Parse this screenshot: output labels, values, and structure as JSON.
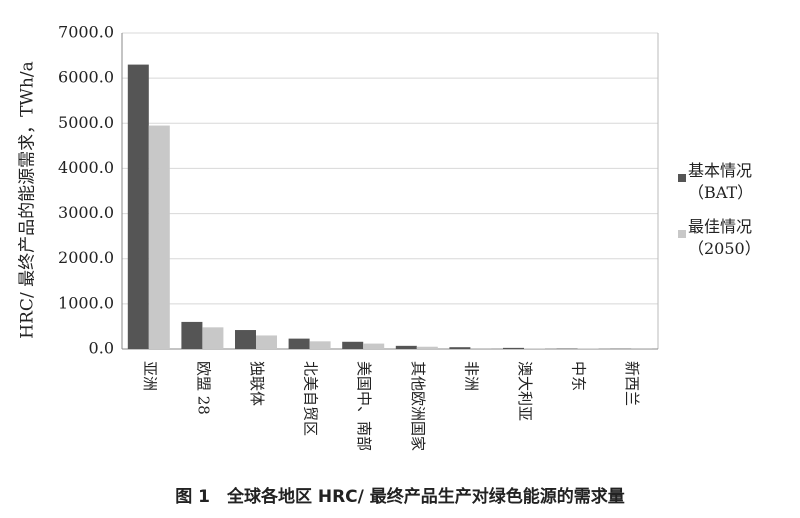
{
  "chart_data": {
    "type": "bar",
    "ylabel": "HRC/ 最终产品的能源需求，TWh/a",
    "caption": "图 1　全球各地区 HRC/ 最终产品生产对绿色能源的需求量",
    "categories": [
      "亚洲",
      "欧盟 28",
      "独联体",
      "北美自贸区",
      "美国中、南部",
      "其他欧洲国家",
      "非洲",
      "澳大利亚",
      "中东",
      "新西兰"
    ],
    "series": [
      {
        "name": "基本情况（BAT）",
        "color": "#555555",
        "values": [
          6300,
          600,
          420,
          230,
          160,
          70,
          40,
          25,
          10,
          5
        ]
      },
      {
        "name": "最佳情况（2050）",
        "color": "#c8c8c8",
        "values": [
          4950,
          480,
          300,
          170,
          120,
          50,
          20,
          15,
          8,
          3
        ]
      }
    ],
    "ylim": [
      0,
      7000
    ],
    "yticks": [
      {
        "value": 0,
        "label": "0.0"
      },
      {
        "value": 1000,
        "label": "1000.0"
      },
      {
        "value": 2000,
        "label": "2000.0"
      },
      {
        "value": 3000,
        "label": "3000.0"
      },
      {
        "value": 4000,
        "label": "4000.0"
      },
      {
        "value": 5000,
        "label": "5000.0"
      },
      {
        "value": 6000,
        "label": "6000.0"
      },
      {
        "value": 7000,
        "label": "7000.0"
      }
    ],
    "grid": true
  }
}
